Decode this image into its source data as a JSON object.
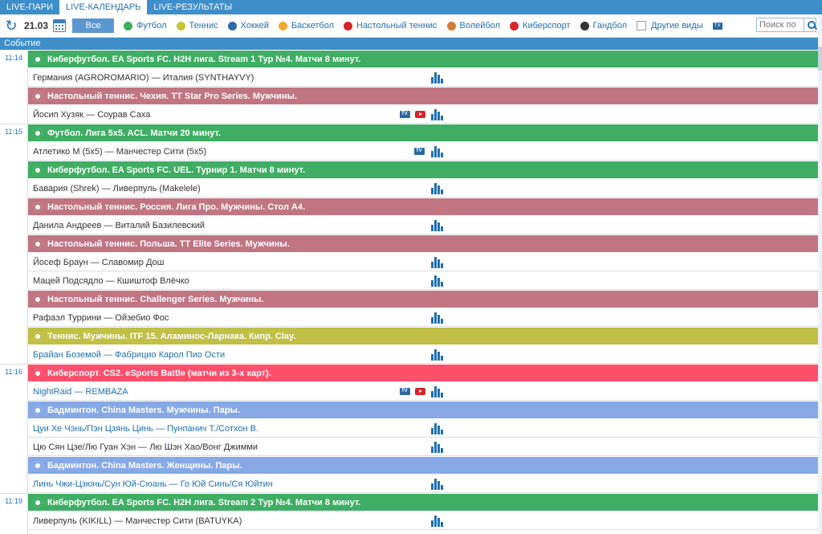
{
  "tabs": [
    "LIVE-ПАРИ",
    "LIVE-КАЛЕНДАРЬ",
    "LIVE-РЕЗУЛЬТАТЫ"
  ],
  "toolbar": {
    "date": "21.03",
    "all_label": "Все",
    "sports": [
      {
        "label": "Футбол",
        "color": "#3cae5c"
      },
      {
        "label": "Теннис",
        "color": "#c7c33b"
      },
      {
        "label": "Хоккей",
        "color": "#2b6aa6"
      },
      {
        "label": "Баскетбол",
        "color": "#f0a830"
      },
      {
        "label": "Настольный теннис",
        "color": "#d8232a"
      },
      {
        "label": "Волейбол",
        "color": "#d77b3a"
      },
      {
        "label": "Киберспорт",
        "color": "#d8232a"
      },
      {
        "label": "Гандбол",
        "color": "#333333"
      }
    ],
    "other_label": "Другие виды",
    "search_placeholder": "Поиск по"
  },
  "column_header": "Событие",
  "colors": {
    "football": "#3fae64",
    "tabletennis": "#c17583",
    "tennis": "#c2bf46",
    "esport": "#ff4f6b",
    "badminton": "#86a9e6"
  },
  "rows": [
    {
      "kind": "time",
      "time": "11:14"
    },
    {
      "kind": "league",
      "sport": "football",
      "text": "Киберфутбол. EA Sports FC. H2H лига. Stream 1 Тур №4. Матчи 8 минут."
    },
    {
      "kind": "event",
      "text": "Германия (AGROROMARIO) — Италия (SYNTHAYVY)",
      "tv": false,
      "yt": false
    },
    {
      "kind": "league",
      "sport": "tabletennis",
      "text": "Настольный теннис. Чехия. TT Star Pro Series. Мужчины."
    },
    {
      "kind": "event",
      "text": "Йосип Хузяк — Соурав Саха",
      "tv": true,
      "yt": true
    },
    {
      "kind": "time",
      "time": "11:15"
    },
    {
      "kind": "league",
      "sport": "football",
      "text": "Футбол. Лига 5x5. ACL. Матчи 20 минут."
    },
    {
      "kind": "event",
      "text": "Атлетико М (5x5) — Манчестер Сити (5x5)",
      "tv": true,
      "yt": false
    },
    {
      "kind": "league",
      "sport": "football",
      "text": "Киберфутбол. EA Sports FC. UEL. Турнир 1. Матчи 8 минут."
    },
    {
      "kind": "event",
      "text": "Бавария (Shrek) — Ливерпуль (Makelele)",
      "tv": false,
      "yt": false
    },
    {
      "kind": "league",
      "sport": "tabletennis",
      "text": "Настольный теннис. Россия. Лига Про. Мужчины. Стол А4."
    },
    {
      "kind": "event",
      "text": "Данила Андреев — Виталий Базилевский",
      "tv": false,
      "yt": false
    },
    {
      "kind": "league",
      "sport": "tabletennis",
      "text": "Настольный теннис. Польша. TT Elite Series. Мужчины."
    },
    {
      "kind": "event",
      "text": "Йосеф Браун — Славомир Дош",
      "tv": false,
      "yt": false
    },
    {
      "kind": "event",
      "text": "Мацей Подсядло — Кшиштоф Влёчко",
      "tv": false,
      "yt": false
    },
    {
      "kind": "league",
      "sport": "tabletennis",
      "text": "Настольный теннис. Challenger Series. Мужчины."
    },
    {
      "kind": "event",
      "text": "Рафаэл Туррини — Ойзебио Фос",
      "tv": false,
      "yt": false
    },
    {
      "kind": "league",
      "sport": "tennis",
      "text": "Теннис. Мужчины. ITF 15. Аламинос-Ларнака. Кипр. Clay."
    },
    {
      "kind": "event",
      "text": "Брайан Боземой — Фабрицио Карол Пио Ости",
      "tv": false,
      "yt": false,
      "blue": true
    },
    {
      "kind": "time",
      "time": "11:16"
    },
    {
      "kind": "league",
      "sport": "esport",
      "text": "Киберспорт. CS2. eSports Battle (матчи из 3-х карт)."
    },
    {
      "kind": "event",
      "text": "NightRaid — REMBAZA",
      "tv": true,
      "yt": true,
      "blue": true
    },
    {
      "kind": "league",
      "sport": "badminton",
      "text": "Бадминтон. China Masters. Мужчины. Пары."
    },
    {
      "kind": "event",
      "text": "Цуи Хе Чэнь/Пэн Цзянь Цинь — Пунпанич Т./Сотхон В.",
      "tv": false,
      "yt": false,
      "blue": true
    },
    {
      "kind": "event",
      "text": "Цю Сян Цзе/Лю Гуан Хэн — Лю Шэн Хао/Вонг Джимми",
      "tv": false,
      "yt": false
    },
    {
      "kind": "league",
      "sport": "badminton",
      "text": "Бадминтон. China Masters. Женщины. Пары."
    },
    {
      "kind": "event",
      "text": "Линь Чжи-Цзюнь/Сун Юй-Сюань — Го Юй Синь/Ся Юйтин",
      "tv": false,
      "yt": false,
      "blue": true
    },
    {
      "kind": "time",
      "time": "11:19"
    },
    {
      "kind": "league",
      "sport": "football",
      "text": "Киберфутбол. EA Sports FC. H2H лига. Stream 2 Тур №4. Матчи 8 минут."
    },
    {
      "kind": "event",
      "text": "Ливерпуль (KIKILL) — Манчестер Сити (BATUYKA)",
      "tv": false,
      "yt": false
    }
  ]
}
